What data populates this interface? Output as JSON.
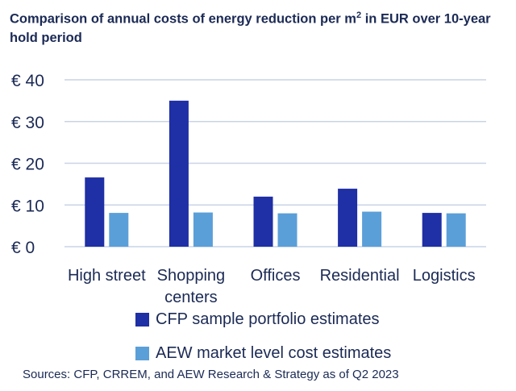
{
  "title_main": "Comparison of annual costs of energy reduction per m",
  "title_sup": "2",
  "title_rest": " in EUR over 10-year hold period",
  "source": "Sources: CFP, CRREM, and AEW Research & Strategy as of Q2 2023",
  "chart_data": {
    "type": "bar",
    "title": "Comparison of annual costs of energy reduction per m² in EUR over 10-year hold period",
    "categories": [
      "High street",
      "Shopping centers",
      "Offices",
      "Residential",
      "Logistics"
    ],
    "category_lines": [
      [
        "High street"
      ],
      [
        "Shopping",
        "centers"
      ],
      [
        "Offices"
      ],
      [
        "Residential"
      ],
      [
        "Logistics"
      ]
    ],
    "series": [
      {
        "name": "CFP sample portfolio estimates",
        "color": "#1f2fa5",
        "values": [
          16.6,
          35.0,
          12.0,
          13.9,
          8.1
        ]
      },
      {
        "name": "AEW market level cost estimates",
        "color": "#5b9fd8",
        "values": [
          8.1,
          8.2,
          8.0,
          8.4,
          8.0
        ]
      }
    ],
    "yticks": [
      "€ 0",
      "€ 10",
      "€ 20",
      "€ 30",
      "€ 40"
    ],
    "ytick_values": [
      0,
      10,
      20,
      30,
      40
    ],
    "ylim": [
      0,
      40
    ],
    "grid": true,
    "gridline_color": "#c9d3e6",
    "legend_position": "bottom"
  }
}
